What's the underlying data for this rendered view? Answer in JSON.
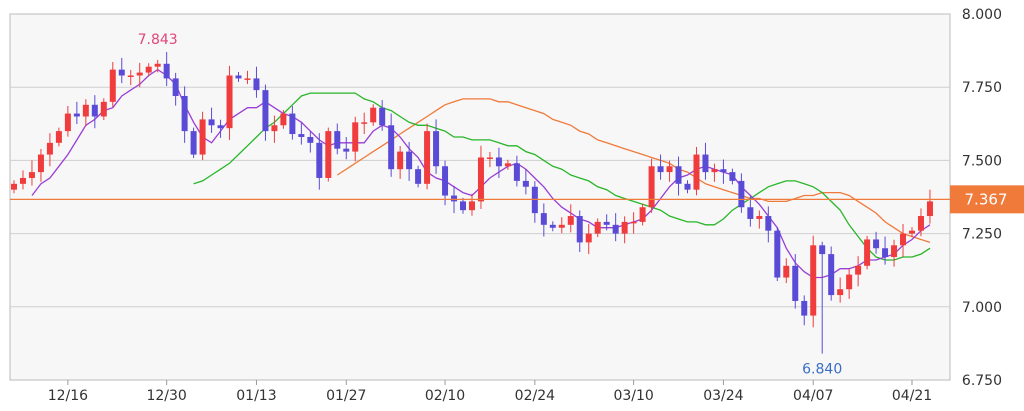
{
  "chart_data": {
    "type": "candlestick",
    "x_tick_labels": [
      "12/16",
      "12/30",
      "01/13",
      "01/27",
      "02/10",
      "02/24",
      "03/10",
      "03/24",
      "04/07",
      "04/21"
    ],
    "x_tick_index": [
      6,
      17,
      27,
      37,
      48,
      58,
      69,
      79,
      89,
      100
    ],
    "y_tick_labels": [
      "8.000",
      "7.750",
      "7.500",
      "7.250",
      "7.000",
      "6.750"
    ],
    "ylim": [
      6.75,
      8.0
    ],
    "grid": true,
    "current_price": "7.367",
    "current_value": 7.367,
    "high_annotation": {
      "label": "7.843",
      "index": 16,
      "value": 7.843
    },
    "low_annotation": {
      "label": "6.840",
      "index": 90,
      "value": 6.84
    },
    "colors": {
      "up": "#f03c3c",
      "down": "#5a4bd6",
      "ma_short": "#9a3ed6",
      "ma_mid": "#29b629",
      "ma_long": "#f07a3a",
      "price_line": "#f07a3a"
    },
    "close": [
      7.42,
      7.44,
      7.46,
      7.52,
      7.56,
      7.6,
      7.66,
      7.65,
      7.69,
      7.65,
      7.7,
      7.81,
      7.79,
      7.79,
      7.8,
      7.82,
      7.83,
      7.78,
      7.72,
      7.6,
      7.52,
      7.64,
      7.62,
      7.61,
      7.79,
      7.78,
      7.78,
      7.74,
      7.6,
      7.62,
      7.66,
      7.59,
      7.58,
      7.56,
      7.44,
      7.6,
      7.54,
      7.53,
      7.63,
      7.63,
      7.68,
      7.62,
      7.47,
      7.53,
      7.47,
      7.42,
      7.6,
      7.48,
      7.38,
      7.36,
      7.33,
      7.36,
      7.51,
      7.51,
      7.48,
      7.49,
      7.43,
      7.41,
      7.32,
      7.28,
      7.27,
      7.28,
      7.31,
      7.22,
      7.25,
      7.29,
      7.28,
      7.25,
      7.29,
      7.29,
      7.34,
      7.48,
      7.46,
      7.48,
      7.42,
      7.4,
      7.52,
      7.46,
      7.47,
      7.46,
      7.43,
      7.34,
      7.3,
      7.31,
      7.26,
      7.1,
      7.14,
      7.02,
      6.97,
      7.21,
      7.18,
      7.04,
      7.06,
      7.11,
      7.14,
      7.23,
      7.2,
      7.17,
      7.21,
      7.25,
      7.26,
      7.31,
      7.36
    ],
    "ma_short": [
      7.38,
      7.42,
      7.44,
      7.48,
      7.52,
      7.57,
      7.62,
      7.64,
      7.67,
      7.68,
      7.72,
      7.74,
      7.76,
      7.79,
      7.81,
      7.79,
      7.76,
      7.69,
      7.63,
      7.58,
      7.56,
      7.6,
      7.64,
      7.66,
      7.68,
      7.68,
      7.7,
      7.68,
      7.66,
      7.65,
      7.63,
      7.6,
      7.57,
      7.55,
      7.56,
      7.56,
      7.56,
      7.56,
      7.6,
      7.62,
      7.61,
      7.58,
      7.54,
      7.51,
      7.46,
      7.44,
      7.43,
      7.41,
      7.39,
      7.38,
      7.41,
      7.44,
      7.46,
      7.48,
      7.49,
      7.47,
      7.44,
      7.41,
      7.37,
      7.34,
      7.32,
      7.3,
      7.29,
      7.27,
      7.27,
      7.27,
      7.28,
      7.29,
      7.3,
      7.33,
      7.37,
      7.41,
      7.44,
      7.45,
      7.47,
      7.48,
      7.47,
      7.46,
      7.45,
      7.41,
      7.38,
      7.35,
      7.31,
      7.27,
      7.2,
      7.15,
      7.12,
      7.1,
      7.1,
      7.11,
      7.13,
      7.13,
      7.14,
      7.16,
      7.16,
      7.17,
      7.18,
      7.21,
      7.23,
      7.26,
      7.28
    ],
    "ma_mid": [
      7.42,
      7.43,
      7.45,
      7.47,
      7.49,
      7.52,
      7.55,
      7.58,
      7.61,
      7.63,
      7.66,
      7.69,
      7.72,
      7.73,
      7.73,
      7.73,
      7.73,
      7.73,
      7.73,
      7.71,
      7.7,
      7.68,
      7.67,
      7.65,
      7.63,
      7.62,
      7.62,
      7.61,
      7.6,
      7.58,
      7.58,
      7.57,
      7.57,
      7.57,
      7.56,
      7.55,
      7.55,
      7.53,
      7.52,
      7.5,
      7.48,
      7.47,
      7.45,
      7.44,
      7.43,
      7.41,
      7.4,
      7.38,
      7.37,
      7.36,
      7.35,
      7.34,
      7.33,
      7.31,
      7.3,
      7.29,
      7.29,
      7.28,
      7.28,
      7.3,
      7.33,
      7.35,
      7.37,
      7.39,
      7.41,
      7.42,
      7.43,
      7.43,
      7.42,
      7.41,
      7.39,
      7.36,
      7.33,
      7.28,
      7.24,
      7.2,
      7.17,
      7.16,
      7.16,
      7.17,
      7.17,
      7.18,
      7.2
    ],
    "ma_long": [
      7.45,
      7.47,
      7.49,
      7.51,
      7.53,
      7.55,
      7.57,
      7.59,
      7.61,
      7.63,
      7.65,
      7.67,
      7.69,
      7.7,
      7.71,
      7.71,
      7.71,
      7.71,
      7.7,
      7.7,
      7.69,
      7.68,
      7.67,
      7.66,
      7.64,
      7.63,
      7.62,
      7.6,
      7.59,
      7.57,
      7.56,
      7.55,
      7.54,
      7.53,
      7.52,
      7.51,
      7.5,
      7.49,
      7.47,
      7.46,
      7.44,
      7.42,
      7.41,
      7.4,
      7.39,
      7.38,
      7.37,
      7.37,
      7.36,
      7.36,
      7.36,
      7.37,
      7.38,
      7.38,
      7.39,
      7.39,
      7.39,
      7.38,
      7.36,
      7.34,
      7.32,
      7.29,
      7.27,
      7.25,
      7.24,
      7.23,
      7.22
    ]
  }
}
